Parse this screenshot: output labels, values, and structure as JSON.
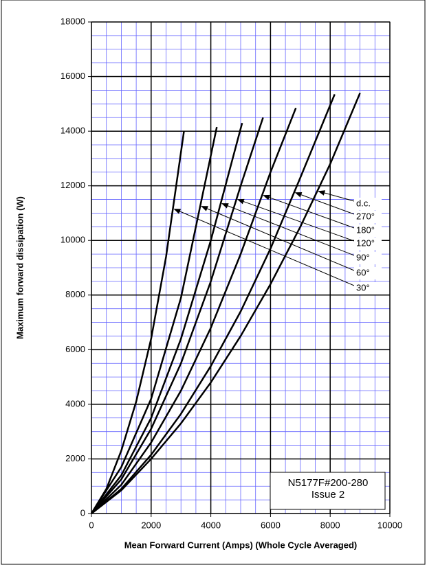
{
  "chart_data": {
    "type": "line",
    "xlabel": "Mean Forward Current (Amps) (Whole Cycle Averaged)",
    "ylabel": "Maximum forward dissipation (W)",
    "annotation": [
      "N5177F#200-280",
      "Issue 2"
    ],
    "xlim": [
      0,
      10000
    ],
    "xticks": [
      0,
      2000,
      4000,
      6000,
      8000,
      10000
    ],
    "ylim": [
      0,
      18000
    ],
    "yticks": [
      0,
      2000,
      4000,
      6000,
      8000,
      10000,
      12000,
      14000,
      16000,
      18000
    ],
    "grid": true,
    "grid_minor_step": {
      "x": 500,
      "y": 500
    },
    "minor_grid_color": "#6666ff",
    "series": [
      {
        "name": "d.c.",
        "color": "#000000",
        "x": [
          0,
          1000,
          2000,
          3000,
          4000,
          5000,
          6000,
          7000,
          8000,
          9000
        ],
        "values": [
          0,
          850,
          2000,
          3300,
          4800,
          6500,
          8400,
          10500,
          12800,
          15400
        ]
      },
      {
        "name": "270°",
        "color": "#000000",
        "x": [
          0,
          1000,
          2000,
          3000,
          4000,
          5000,
          6000,
          7000,
          8150
        ],
        "values": [
          0,
          900,
          2150,
          3650,
          5400,
          7400,
          9700,
          12300,
          15350
        ]
      },
      {
        "name": "180°",
        "color": "#000000",
        "x": [
          0,
          1000,
          2000,
          3000,
          4000,
          5000,
          6000,
          6850
        ],
        "values": [
          0,
          1050,
          2600,
          4500,
          6800,
          9500,
          12500,
          14850
        ]
      },
      {
        "name": "120°",
        "color": "#000000",
        "x": [
          0,
          1000,
          2000,
          3000,
          4000,
          5000,
          5750
        ],
        "values": [
          0,
          1250,
          3100,
          5500,
          8500,
          12000,
          14500
        ]
      },
      {
        "name": "90°",
        "color": "#000000",
        "x": [
          0,
          1000,
          2000,
          3000,
          4000,
          5050
        ],
        "values": [
          0,
          1400,
          3500,
          6400,
          10000,
          14300
        ]
      },
      {
        "name": "60°",
        "color": "#000000",
        "x": [
          0,
          1000,
          2000,
          3000,
          4200
        ],
        "values": [
          0,
          1700,
          4200,
          7900,
          14150
        ]
      },
      {
        "name": "30°",
        "color": "#000000",
        "x": [
          0,
          500,
          1000,
          1500,
          2000,
          2500,
          3100
        ],
        "values": [
          0,
          900,
          2300,
          4100,
          6400,
          9400,
          14000
        ]
      }
    ]
  }
}
